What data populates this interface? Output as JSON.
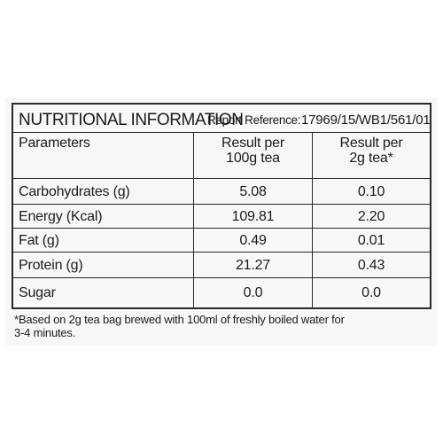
{
  "table": {
    "title": "NUTRITIONAL INFORMATION",
    "report_label": "Report Reference:",
    "report_value": "17969/15/WB1/561/01",
    "headers": {
      "parameters": "Parameters",
      "per_100g_line1": "Result per",
      "per_100g_line2": "100g tea",
      "per_2g_line1": "Result per",
      "per_2g_line2": "2g tea*"
    },
    "rows": [
      {
        "parameter": "Carbohydrates (g)",
        "per_100g": "5.08",
        "per_2g": "0.10"
      },
      {
        "parameter": "Energy (Kcal)",
        "per_100g": "109.81",
        "per_2g": "2.20"
      },
      {
        "parameter": "Fat (g)",
        "per_100g": "0.49",
        "per_2g": "0.01"
      },
      {
        "parameter": "Protein (g)",
        "per_100g": "21.27",
        "per_2g": "0.43"
      },
      {
        "parameter": "Sugar",
        "per_100g": "0.0",
        "per_2g": "0.0"
      }
    ]
  },
  "footnote": {
    "line1": "*Based on 2g tea bag brewed with 100ml of freshly boiled water for",
    "line2": "3-4 minutes."
  }
}
